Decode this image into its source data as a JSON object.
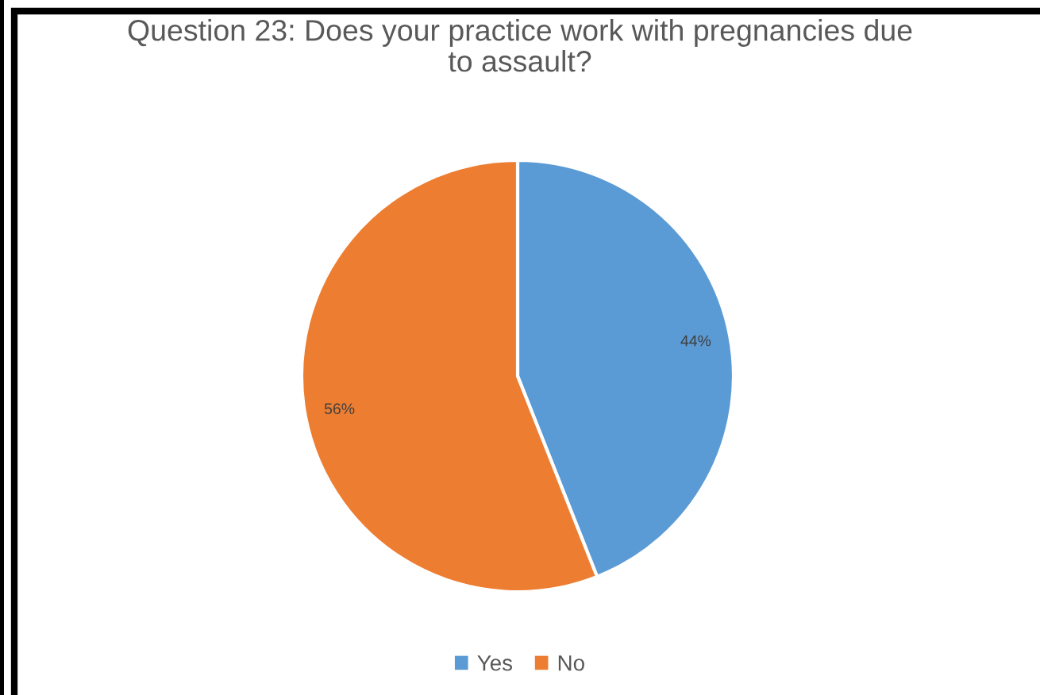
{
  "chart_data": {
    "type": "pie",
    "title": "Question 23: Does your practice work with pregnancies due to assault?",
    "categories": [
      "Yes",
      "No"
    ],
    "values": [
      44,
      56
    ],
    "colors": [
      "#5b9bd5",
      "#ed7d31"
    ],
    "value_labels": [
      "44%",
      "56%"
    ],
    "legend": "bottom"
  }
}
